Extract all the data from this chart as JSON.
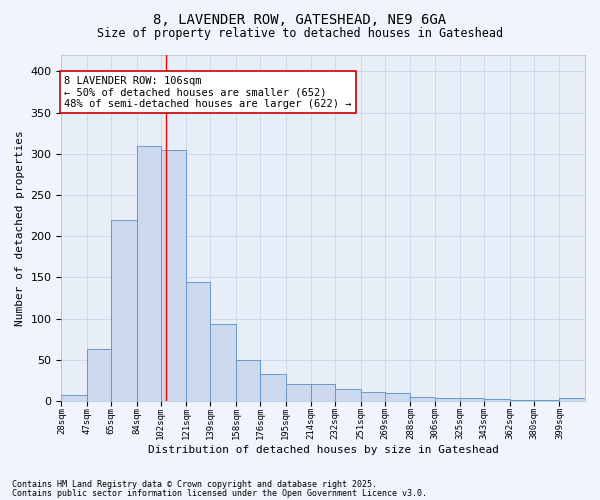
{
  "title_line1": "8, LAVENDER ROW, GATESHEAD, NE9 6GA",
  "title_line2": "Size of property relative to detached houses in Gateshead",
  "xlabel": "Distribution of detached houses by size in Gateshead",
  "ylabel": "Number of detached properties",
  "bar_edges": [
    28,
    47,
    65,
    84,
    102,
    121,
    139,
    158,
    176,
    195,
    214,
    232,
    251,
    269,
    288,
    306,
    325,
    343,
    362,
    380,
    399
  ],
  "bar_heights": [
    7,
    63,
    220,
    310,
    305,
    145,
    93,
    50,
    33,
    21,
    21,
    14,
    11,
    10,
    5,
    4,
    3,
    2,
    1,
    1,
    3
  ],
  "bar_color": "#ccd9ee",
  "bar_edge_color": "#6699cc",
  "bar_edge_width": 0.7,
  "grid_color": "#c8d4e8",
  "background_color": "#e8eef8",
  "fig_background_color": "#f0f4fc",
  "red_line_x": 106,
  "ylim": [
    0,
    420
  ],
  "yticks": [
    0,
    50,
    100,
    150,
    200,
    250,
    300,
    350,
    400
  ],
  "annotation_text": "8 LAVENDER ROW: 106sqm\n← 50% of detached houses are smaller (652)\n48% of semi-detached houses are larger (622) →",
  "annotation_box_color": "#ffffff",
  "annotation_box_edge_color": "#cc0000",
  "footnote_line1": "Contains HM Land Registry data © Crown copyright and database right 2025.",
  "footnote_line2": "Contains public sector information licensed under the Open Government Licence v3.0."
}
